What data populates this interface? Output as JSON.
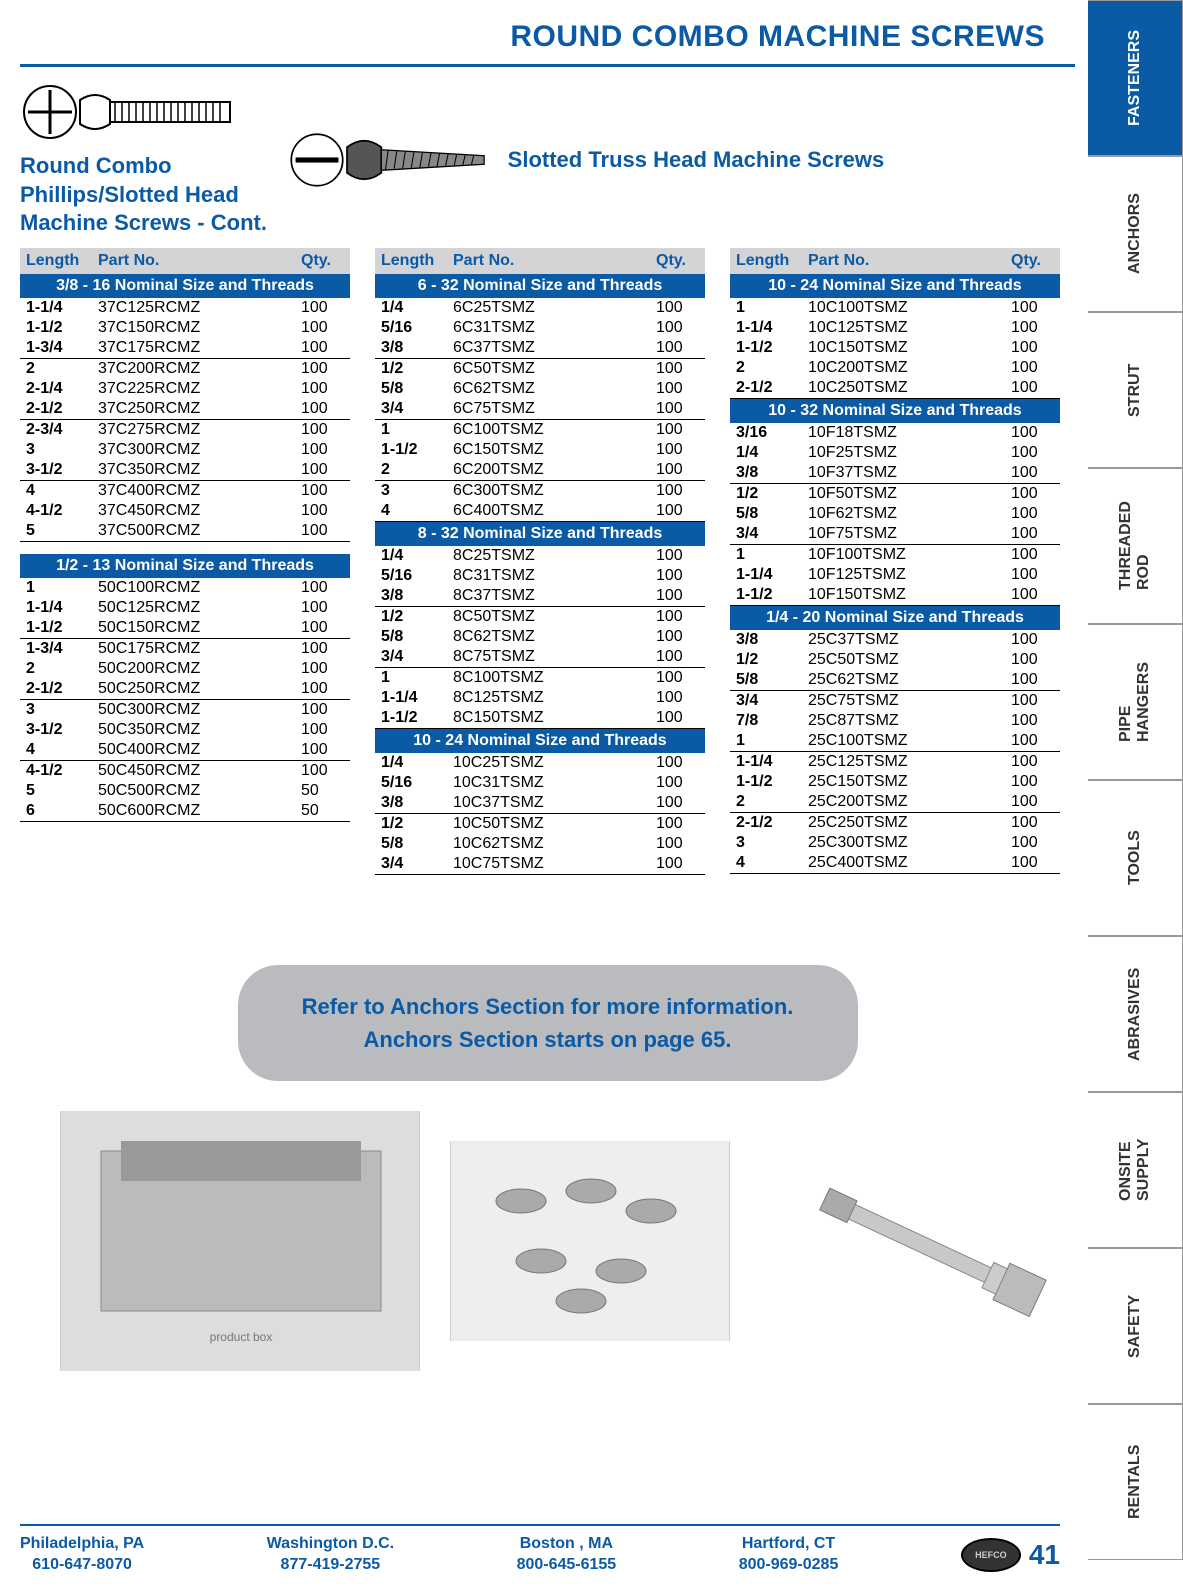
{
  "page_title": "ROUND COMBO MACHINE SCREWS",
  "left_subtitle_l1": "Round Combo",
  "left_subtitle_l2": "Phillips/Slotted Head",
  "left_subtitle_l3": "Machine Screws - Cont.",
  "right_subtitle": "Slotted Truss Head Machine Screws",
  "headers": {
    "c1": "Length",
    "c2": "Part No.",
    "c3": "Qty."
  },
  "col1": {
    "sections": [
      {
        "band": "3/8 - 16 Nominal Size and Threads",
        "groups": [
          [
            [
              "1-1/4",
              "37C125RCMZ",
              "100"
            ],
            [
              "1-1/2",
              "37C150RCMZ",
              "100"
            ],
            [
              "1-3/4",
              "37C175RCMZ",
              "100"
            ]
          ],
          [
            [
              "2",
              "37C200RCMZ",
              "100"
            ],
            [
              "2-1/4",
              "37C225RCMZ",
              "100"
            ],
            [
              "2-1/2",
              "37C250RCMZ",
              "100"
            ]
          ],
          [
            [
              "2-3/4",
              "37C275RCMZ",
              "100"
            ],
            [
              "3",
              "37C300RCMZ",
              "100"
            ],
            [
              "3-1/2",
              "37C350RCMZ",
              "100"
            ]
          ],
          [
            [
              "4",
              "37C400RCMZ",
              "100"
            ],
            [
              "4-1/2",
              "37C450RCMZ",
              "100"
            ],
            [
              "5",
              "37C500RCMZ",
              "100"
            ]
          ]
        ]
      },
      {
        "band": "1/2 - 13 Nominal Size and Threads",
        "groups": [
          [
            [
              "1",
              "50C100RCMZ",
              "100"
            ],
            [
              "1-1/4",
              "50C125RCMZ",
              "100"
            ],
            [
              "1-1/2",
              "50C150RCMZ",
              "100"
            ]
          ],
          [
            [
              "1-3/4",
              "50C175RCMZ",
              "100"
            ],
            [
              "2",
              "50C200RCMZ",
              "100"
            ],
            [
              "2-1/2",
              "50C250RCMZ",
              "100"
            ]
          ],
          [
            [
              "3",
              "50C300RCMZ",
              "100"
            ],
            [
              "3-1/2",
              "50C350RCMZ",
              "100"
            ],
            [
              "4",
              "50C400RCMZ",
              "100"
            ]
          ],
          [
            [
              "4-1/2",
              "50C450RCMZ",
              "100"
            ],
            [
              "5",
              "50C500RCMZ",
              "50"
            ],
            [
              "6",
              "50C600RCMZ",
              "50"
            ]
          ]
        ]
      }
    ]
  },
  "col2": {
    "sections": [
      {
        "band": "6 - 32 Nominal Size and Threads",
        "groups": [
          [
            [
              "1/4",
              "6C25TSMZ",
              "100"
            ],
            [
              "5/16",
              "6C31TSMZ",
              "100"
            ],
            [
              "3/8",
              "6C37TSMZ",
              "100"
            ]
          ],
          [
            [
              "1/2",
              "6C50TSMZ",
              "100"
            ],
            [
              "5/8",
              "6C62TSMZ",
              "100"
            ],
            [
              "3/4",
              "6C75TSMZ",
              "100"
            ]
          ],
          [
            [
              "1",
              "6C100TSMZ",
              "100"
            ],
            [
              "1-1/2",
              "6C150TSMZ",
              "100"
            ],
            [
              "2",
              "6C200TSMZ",
              "100"
            ]
          ],
          [
            [
              "3",
              "6C300TSMZ",
              "100"
            ],
            [
              "4",
              "6C400TSMZ",
              "100"
            ]
          ]
        ]
      },
      {
        "band": "8 - 32 Nominal Size and Threads",
        "groups": [
          [
            [
              "1/4",
              "8C25TSMZ",
              "100"
            ],
            [
              "5/16",
              "8C31TSMZ",
              "100"
            ],
            [
              "3/8",
              "8C37TSMZ",
              "100"
            ]
          ],
          [
            [
              "1/2",
              "8C50TSMZ",
              "100"
            ],
            [
              "5/8",
              "8C62TSMZ",
              "100"
            ],
            [
              "3/4",
              "8C75TSMZ",
              "100"
            ]
          ],
          [
            [
              "1",
              "8C100TSMZ",
              "100"
            ],
            [
              "1-1/4",
              "8C125TSMZ",
              "100"
            ],
            [
              "1-1/2",
              "8C150TSMZ",
              "100"
            ]
          ]
        ]
      },
      {
        "band": "10 - 24 Nominal Size and Threads",
        "groups": [
          [
            [
              "1/4",
              "10C25TSMZ",
              "100"
            ],
            [
              "5/16",
              "10C31TSMZ",
              "100"
            ],
            [
              "3/8",
              "10C37TSMZ",
              "100"
            ]
          ],
          [
            [
              "1/2",
              "10C50TSMZ",
              "100"
            ],
            [
              "5/8",
              "10C62TSMZ",
              "100"
            ],
            [
              "3/4",
              "10C75TSMZ",
              "100"
            ]
          ]
        ]
      }
    ]
  },
  "col3": {
    "sections": [
      {
        "band": "10 - 24 Nominal Size and Threads",
        "groups": [
          [
            [
              "1",
              "10C100TSMZ",
              "100"
            ],
            [
              "1-1/4",
              "10C125TSMZ",
              "100"
            ],
            [
              "1-1/2",
              "10C150TSMZ",
              "100"
            ],
            [
              "2",
              "10C200TSMZ",
              "100"
            ],
            [
              "2-1/2",
              "10C250TSMZ",
              "100"
            ]
          ]
        ]
      },
      {
        "band": "10 - 32 Nominal Size and Threads",
        "groups": [
          [
            [
              "3/16",
              "10F18TSMZ",
              "100"
            ],
            [
              "1/4",
              "10F25TSMZ",
              "100"
            ],
            [
              "3/8",
              "10F37TSMZ",
              "100"
            ]
          ],
          [
            [
              "1/2",
              "10F50TSMZ",
              "100"
            ],
            [
              "5/8",
              "10F62TSMZ",
              "100"
            ],
            [
              "3/4",
              "10F75TSMZ",
              "100"
            ]
          ],
          [
            [
              "1",
              "10F100TSMZ",
              "100"
            ],
            [
              "1-1/4",
              "10F125TSMZ",
              "100"
            ],
            [
              "1-1/2",
              "10F150TSMZ",
              "100"
            ]
          ]
        ]
      },
      {
        "band": "1/4 - 20 Nominal Size and Threads",
        "groups": [
          [
            [
              "3/8",
              "25C37TSMZ",
              "100"
            ],
            [
              "1/2",
              "25C50TSMZ",
              "100"
            ],
            [
              "5/8",
              "25C62TSMZ",
              "100"
            ]
          ],
          [
            [
              "3/4",
              "25C75TSMZ",
              "100"
            ],
            [
              "7/8",
              "25C87TSMZ",
              "100"
            ],
            [
              "1",
              "25C100TSMZ",
              "100"
            ]
          ],
          [
            [
              "1-1/4",
              "25C125TSMZ",
              "100"
            ],
            [
              "1-1/2",
              "25C150TSMZ",
              "100"
            ],
            [
              "2",
              "25C200TSMZ",
              "100"
            ]
          ],
          [
            [
              "2-1/2",
              "25C250TSMZ",
              "100"
            ],
            [
              "3",
              "25C300TSMZ",
              "100"
            ],
            [
              "4",
              "25C400TSMZ",
              "100"
            ]
          ]
        ]
      }
    ]
  },
  "callout_l1": "Refer to Anchors Section for more information.",
  "callout_l2": "Anchors Section starts on page 65.",
  "footer": {
    "locs": [
      {
        "city": "Philadelphia, PA",
        "phone": "610-647-8070"
      },
      {
        "city": "Washington D.C.",
        "phone": "877-419-2755"
      },
      {
        "city": "Boston , MA",
        "phone": "800-645-6155"
      },
      {
        "city": "Hartford, CT",
        "phone": "800-969-0285"
      }
    ],
    "page_num": "41"
  },
  "tabs": [
    "FASTENERS",
    "ANCHORS",
    "STRUT",
    "THREADED\nROD",
    "PIPE\nHANGERS",
    "TOOLS",
    "ABRASIVES",
    "ONSITE\nSUPPLY",
    "SAFETY",
    "RENTALS"
  ],
  "colors": {
    "brand_blue": "#0a5aa6",
    "header_gray": "#d4d4d6",
    "callout_gray": "#b9bbbe"
  }
}
